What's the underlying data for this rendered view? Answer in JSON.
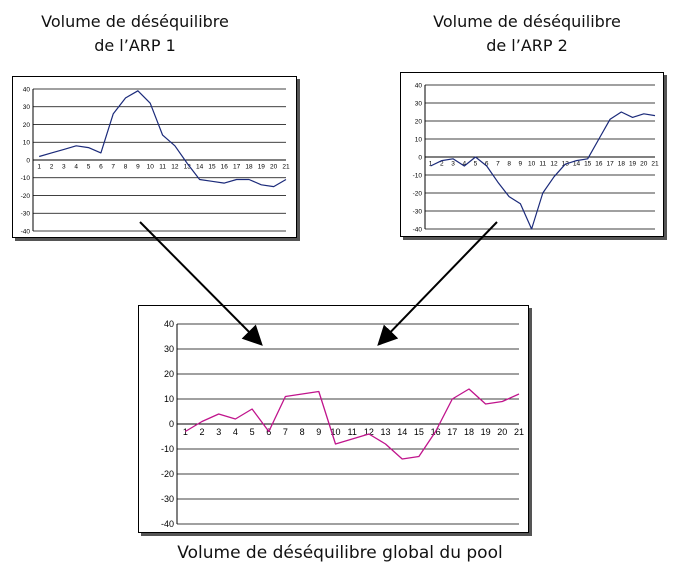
{
  "captions": {
    "arp1": [
      "Volume de déséquilibre",
      "de l’ARP 1"
    ],
    "arp2": [
      "Volume de déséquilibre",
      "de l’ARP 2"
    ],
    "pool": "Volume de déséquilibre global du pool"
  },
  "chart_data": [
    {
      "type": "line",
      "title": "",
      "categories": [
        "1",
        "2",
        "3",
        "4",
        "5",
        "6",
        "7",
        "8",
        "9",
        "10",
        "11",
        "12",
        "13",
        "14",
        "15",
        "16",
        "17",
        "18",
        "19",
        "20",
        "21"
      ],
      "series": [
        {
          "values": [
            2,
            4,
            6,
            8,
            7,
            4,
            26,
            35,
            39,
            32,
            14,
            8,
            -2,
            -11,
            -12,
            -13,
            -11,
            -11,
            -14,
            -15,
            -11
          ]
        }
      ],
      "ylim": [
        -40,
        40
      ],
      "yticks": [
        40,
        30,
        20,
        10,
        0,
        -10,
        -20,
        -30,
        -40
      ],
      "grid": true,
      "color": "#1b2a7a"
    },
    {
      "type": "line",
      "title": "",
      "categories": [
        "1",
        "2",
        "3",
        "4",
        "5",
        "6",
        "7",
        "8",
        "9",
        "10",
        "11",
        "12",
        "13",
        "14",
        "15",
        "16",
        "17",
        "18",
        "19",
        "20",
        "21"
      ],
      "series": [
        {
          "values": [
            -5,
            -2,
            -1,
            -5,
            0,
            -5,
            -14,
            -22,
            -26,
            -40,
            -20,
            -11,
            -4,
            -2,
            -1,
            10,
            21,
            25,
            22,
            24,
            23
          ]
        }
      ],
      "ylim": [
        -40,
        40
      ],
      "yticks": [
        40,
        30,
        20,
        10,
        0,
        -10,
        -20,
        -30,
        -40
      ],
      "grid": true,
      "color": "#1b2a7a"
    },
    {
      "type": "line",
      "title": "",
      "categories": [
        "1",
        "2",
        "3",
        "4",
        "5",
        "6",
        "7",
        "8",
        "9",
        "10",
        "11",
        "12",
        "13",
        "14",
        "15",
        "16",
        "17",
        "18",
        "19",
        "20",
        "21"
      ],
      "series": [
        {
          "values": [
            -3,
            1,
            4,
            2,
            6,
            -3,
            11,
            12,
            13,
            -8,
            -6,
            -4,
            -8,
            -14,
            -13,
            -3,
            10,
            14,
            8,
            9,
            12
          ]
        }
      ],
      "ylim": [
        -40,
        40
      ],
      "yticks": [
        40,
        30,
        20,
        10,
        0,
        -10,
        -20,
        -30,
        -40
      ],
      "grid": true,
      "color": "#c0148c"
    }
  ]
}
